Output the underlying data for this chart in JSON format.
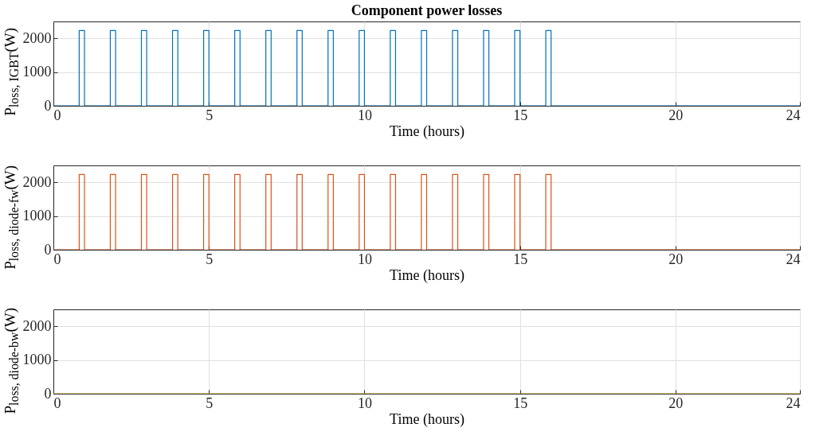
{
  "chart_data": [
    {
      "type": "line",
      "title": "Component power losses",
      "xlabel": "Time (hours)",
      "ylabel": "P$_{loss, IGBT}$(W)",
      "xlim": [
        0,
        24
      ],
      "xticks": [
        0,
        5,
        10,
        15,
        20,
        24
      ],
      "ylim": [
        0,
        2500
      ],
      "yticks": [
        0,
        1000,
        2000
      ],
      "grid": true,
      "x": [
        0,
        0.83,
        0.83,
        1,
        1,
        1.83,
        1.83,
        2,
        2,
        2.83,
        2.83,
        3,
        3,
        3.83,
        3.83,
        4,
        4,
        4.83,
        4.83,
        5,
        5,
        5.83,
        5.83,
        6,
        6,
        6.83,
        6.83,
        7,
        7,
        7.83,
        7.83,
        8,
        8,
        8.83,
        8.83,
        9,
        9,
        9.83,
        9.83,
        10,
        10,
        10.83,
        10.83,
        11,
        11,
        11.83,
        11.83,
        12,
        12,
        12.83,
        12.83,
        13,
        13,
        13.83,
        13.83,
        14,
        14,
        14.83,
        14.83,
        15,
        15,
        15.83,
        15.83,
        16,
        16,
        24
      ],
      "series": [
        {
          "color": "#0072bd",
          "values": [
            0,
            0,
            2230,
            2230,
            0,
            0,
            2230,
            2230,
            0,
            0,
            2230,
            2230,
            0,
            0,
            2230,
            2230,
            0,
            0,
            2230,
            2230,
            0,
            0,
            2230,
            2230,
            0,
            0,
            2230,
            2230,
            0,
            0,
            2230,
            2230,
            0,
            0,
            2230,
            2230,
            0,
            0,
            2230,
            2230,
            0,
            0,
            2230,
            2230,
            0,
            0,
            2230,
            2230,
            0,
            0,
            2230,
            2230,
            0,
            0,
            2230,
            2230,
            0,
            0,
            2230,
            2230,
            0,
            0,
            2230,
            2230,
            0,
            0
          ]
        }
      ]
    },
    {
      "type": "line",
      "xlabel": "Time (hours)",
      "ylabel": "P$_{loss, diode-fw}$(W)",
      "xlim": [
        0,
        24
      ],
      "xticks": [
        0,
        5,
        10,
        15,
        20,
        24
      ],
      "ylim": [
        0,
        2500
      ],
      "yticks": [
        0,
        1000,
        2000
      ],
      "grid": true,
      "x": [
        0,
        0.83,
        0.83,
        1,
        1,
        1.83,
        1.83,
        2,
        2,
        2.83,
        2.83,
        3,
        3,
        3.83,
        3.83,
        4,
        4,
        4.83,
        4.83,
        5,
        5,
        5.83,
        5.83,
        6,
        6,
        6.83,
        6.83,
        7,
        7,
        7.83,
        7.83,
        8,
        8,
        8.83,
        8.83,
        9,
        9,
        9.83,
        9.83,
        10,
        10,
        10.83,
        10.83,
        11,
        11,
        11.83,
        11.83,
        12,
        12,
        12.83,
        12.83,
        13,
        13,
        13.83,
        13.83,
        14,
        14,
        14.83,
        14.83,
        15,
        15,
        15.83,
        15.83,
        16,
        16,
        24
      ],
      "series": [
        {
          "color": "#d95319",
          "values": [
            0,
            0,
            2230,
            2230,
            0,
            0,
            2230,
            2230,
            0,
            0,
            2230,
            2230,
            0,
            0,
            2230,
            2230,
            0,
            0,
            2230,
            2230,
            0,
            0,
            2230,
            2230,
            0,
            0,
            2230,
            2230,
            0,
            0,
            2230,
            2230,
            0,
            0,
            2230,
            2230,
            0,
            0,
            2230,
            2230,
            0,
            0,
            2230,
            2230,
            0,
            0,
            2230,
            2230,
            0,
            0,
            2230,
            2230,
            0,
            0,
            2230,
            2230,
            0,
            0,
            2230,
            2230,
            0,
            0,
            2230,
            2230,
            0,
            0
          ]
        }
      ]
    },
    {
      "type": "line",
      "xlabel": "Time (hours)",
      "ylabel": "P$_{loss, diode-bw}$(W)",
      "xlim": [
        0,
        24
      ],
      "xticks": [
        0,
        5,
        10,
        15,
        20,
        24
      ],
      "ylim": [
        0,
        2500
      ],
      "yticks": [
        0,
        1000,
        2000
      ],
      "grid": true,
      "x": [
        0,
        24
      ],
      "series": [
        {
          "color": "#edb120",
          "values": [
            0,
            0
          ]
        }
      ]
    }
  ]
}
